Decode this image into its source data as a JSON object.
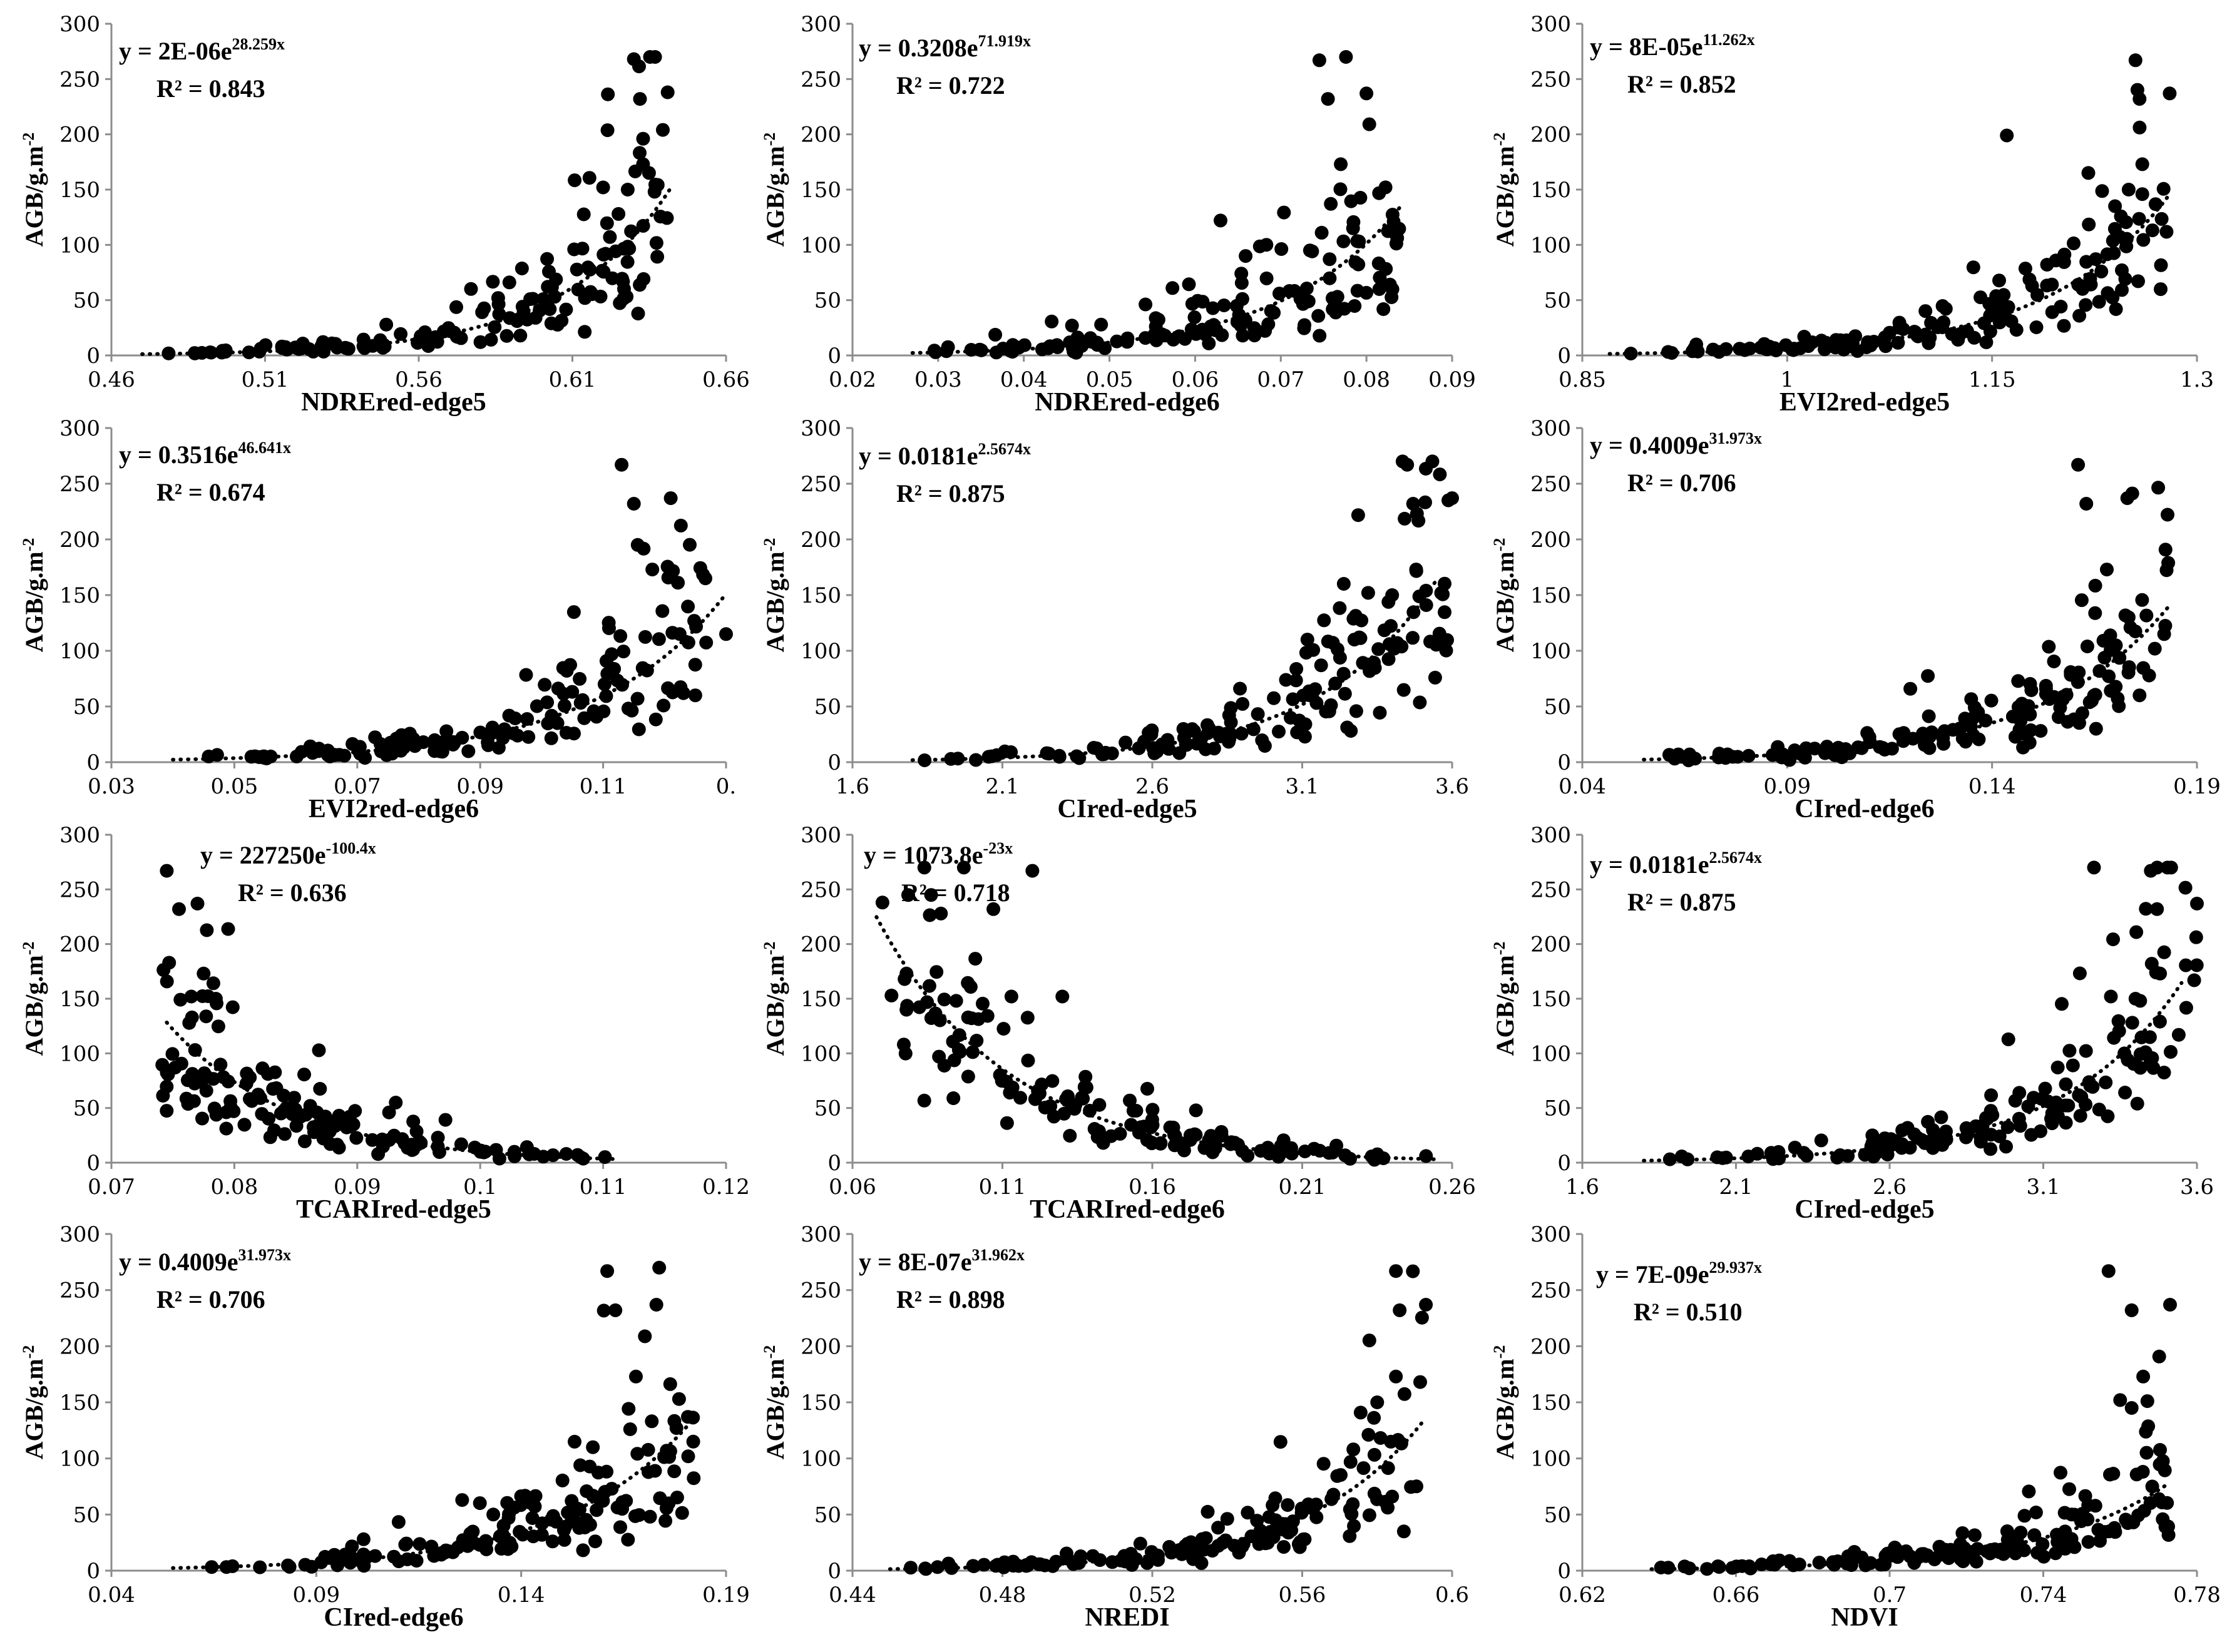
{
  "figure": {
    "ylabel": "AGB/g.m-2",
    "ylabel_main": "AGB/g.m",
    "ylabel_sup": "-2"
  },
  "chart_data": [
    {
      "type": "scatter",
      "xlabel": "NDREred-edge5",
      "ylabel": "AGB/g.m-2",
      "xticks": [
        "0.46",
        "0.51",
        "0.56",
        "0.61",
        "0.66"
      ],
      "xlim": [
        0.46,
        0.66
      ],
      "yticks": [
        "0",
        "50",
        "100",
        "150",
        "200",
        "250",
        "300"
      ],
      "ylim": [
        0,
        300
      ],
      "equation": {
        "prefix": "y = 2E-06e",
        "exponent": "28.259x"
      },
      "r2": "R² = 0.843",
      "fit": {
        "a": 2e-06,
        "b": 28.259,
        "x_from": 0.47,
        "x_to": 0.642
      },
      "points": {
        "x_min": 0.472,
        "x_max": 0.642,
        "n": 150
      },
      "outliers": [
        [
          0.63,
          268
        ],
        [
          0.632,
          232
        ],
        [
          0.641,
          238
        ],
        [
          0.633,
          173
        ],
        [
          0.628,
          150
        ],
        [
          0.625,
          128
        ],
        [
          0.62,
          152
        ]
      ]
    },
    {
      "type": "scatter",
      "xlabel": "NDREred-edge6",
      "ylabel": "AGB/g.m-2",
      "xticks": [
        "0.02",
        "0.03",
        "0.04",
        "0.05",
        "0.06",
        "0.07",
        "0.08",
        "0.09"
      ],
      "xlim": [
        0.02,
        0.09
      ],
      "yticks": [
        "0",
        "50",
        "100",
        "150",
        "200",
        "250",
        "300"
      ],
      "ylim": [
        0,
        300
      ],
      "equation": {
        "prefix": "y = 0.3208e",
        "exponent": "71.919x"
      },
      "r2": "R² = 0.722",
      "fit": {
        "a": 0.3208,
        "b": 71.919,
        "x_from": 0.027,
        "x_to": 0.084
      },
      "points": {
        "x_min": 0.027,
        "x_max": 0.084,
        "n": 150
      },
      "outliers": [
        [
          0.0745,
          267
        ],
        [
          0.0755,
          232
        ],
        [
          0.08,
          237
        ],
        [
          0.077,
          173
        ],
        [
          0.0815,
          60
        ],
        [
          0.0835,
          115
        ]
      ]
    },
    {
      "type": "scatter",
      "xlabel": "EVI2red-edge5",
      "ylabel": "AGB/g.m-2",
      "xticks": [
        "0.85",
        "1",
        "1.15",
        "1.3"
      ],
      "xlim": [
        0.85,
        1.3
      ],
      "yticks": [
        "0",
        "50",
        "100",
        "150",
        "200",
        "250",
        "300"
      ],
      "ylim": [
        0,
        300
      ],
      "equation": {
        "prefix": "y = 8E-05e",
        "exponent": "11.262x"
      },
      "r2": "R² = 0.852",
      "fit": {
        "a": 8e-05,
        "b": 11.262,
        "x_from": 0.87,
        "x_to": 1.28
      },
      "points": {
        "x_min": 0.87,
        "x_max": 1.28,
        "n": 150
      },
      "outliers": [
        [
          1.255,
          267
        ],
        [
          1.258,
          232
        ],
        [
          1.28,
          237
        ],
        [
          1.26,
          173
        ],
        [
          1.25,
          150
        ],
        [
          1.24,
          135
        ]
      ]
    },
    {
      "type": "scatter",
      "xlabel": "EVI2red-edge6",
      "ylabel": "AGB/g.m-2",
      "xticks": [
        "0.03",
        "0.05",
        "0.07",
        "0.09",
        "0.11",
        "0."
      ],
      "xlim": [
        0.03,
        0.13
      ],
      "yticks": [
        "0",
        "50",
        "100",
        "150",
        "200",
        "250",
        "300"
      ],
      "ylim": [
        0,
        300
      ],
      "equation": {
        "prefix": "y = 0.3516e",
        "exponent": "46.641x"
      },
      "r2": "R² = 0.674",
      "fit": {
        "a": 0.3516,
        "b": 46.641,
        "x_from": 0.04,
        "x_to": 0.13
      },
      "points": {
        "x_min": 0.04,
        "x_max": 0.128,
        "n": 150
      },
      "outliers": [
        [
          0.113,
          267
        ],
        [
          0.115,
          232
        ],
        [
          0.121,
          237
        ],
        [
          0.118,
          173
        ],
        [
          0.125,
          60
        ],
        [
          0.13,
          115
        ]
      ]
    },
    {
      "type": "scatter",
      "xlabel": "CIred-edge5",
      "ylabel": "AGB/g.m-2",
      "xticks": [
        "1.6",
        "2.1",
        "2.6",
        "3.1",
        "3.6"
      ],
      "xlim": [
        1.6,
        3.6
      ],
      "yticks": [
        "0",
        "50",
        "100",
        "150",
        "200",
        "250",
        "300"
      ],
      "ylim": [
        0,
        300
      ],
      "equation": {
        "prefix": "y = 0.0181e",
        "exponent": "2.5674x"
      },
      "r2": "R² = 0.875",
      "fit": {
        "a": 0.0181,
        "b": 2.5674,
        "x_from": 1.8,
        "x_to": 3.55
      },
      "points": {
        "x_min": 1.8,
        "x_max": 3.6,
        "n": 150
      },
      "outliers": [
        [
          3.45,
          267
        ],
        [
          3.47,
          232
        ],
        [
          3.6,
          237
        ],
        [
          3.48,
          173
        ],
        [
          3.4,
          150
        ],
        [
          3.32,
          152
        ]
      ]
    },
    {
      "type": "scatter",
      "xlabel": "CIred-edge6",
      "ylabel": "AGB/g.m-2",
      "xticks": [
        "0.04",
        "0.09",
        "0.14",
        "0.19"
      ],
      "xlim": [
        0.04,
        0.19
      ],
      "yticks": [
        "0",
        "50",
        "100",
        "150",
        "200",
        "250",
        "300"
      ],
      "ylim": [
        0,
        300
      ],
      "equation": {
        "prefix": "y = 0.4009e",
        "exponent": "31.973x"
      },
      "r2": "R² = 0.706",
      "fit": {
        "a": 0.4009,
        "b": 31.973,
        "x_from": 0.055,
        "x_to": 0.183
      },
      "points": {
        "x_min": 0.055,
        "x_max": 0.183,
        "n": 150
      },
      "outliers": [
        [
          0.161,
          267
        ],
        [
          0.163,
          232
        ],
        [
          0.173,
          237
        ],
        [
          0.168,
          173
        ],
        [
          0.176,
          60
        ],
        [
          0.182,
          115
        ]
      ]
    },
    {
      "type": "scatter",
      "xlabel": "TCARIred-edge5",
      "ylabel": "AGB/g.m-2",
      "xticks": [
        "0.07",
        "0.08",
        "0.09",
        "0.1",
        "0.11",
        "0.12"
      ],
      "xlim": [
        0.07,
        0.12
      ],
      "yticks": [
        "0",
        "50",
        "100",
        "150",
        "200",
        "250",
        "300"
      ],
      "ylim": [
        0,
        300
      ],
      "equation": {
        "prefix": "y = 227250e",
        "exponent": "-100.4x"
      },
      "r2": "R² = 0.636",
      "fit": {
        "a": 227250,
        "b": -100.4,
        "x_from": 0.0745,
        "x_to": 0.111
      },
      "points": {
        "x_min": 0.074,
        "x_max": 0.111,
        "n": 150
      },
      "outliers": [
        [
          0.0745,
          267
        ],
        [
          0.0755,
          232
        ],
        [
          0.077,
          237
        ],
        [
          0.0775,
          173
        ],
        [
          0.0765,
          152
        ],
        [
          0.0785,
          150
        ]
      ]
    },
    {
      "type": "scatter",
      "xlabel": "TCARIred-edge6",
      "ylabel": "AGB/g.m-2",
      "xticks": [
        "0.06",
        "0.11",
        "0.16",
        "0.21",
        "0.26"
      ],
      "xlim": [
        0.06,
        0.26
      ],
      "yticks": [
        "0",
        "50",
        "100",
        "150",
        "200",
        "250",
        "300"
      ],
      "ylim": [
        0,
        300
      ],
      "equation": {
        "prefix": "y = 1073.8e",
        "exponent": "-23x"
      },
      "r2": "R² = 0.718",
      "fit": {
        "a": 1073.8,
        "b": -23,
        "x_from": 0.068,
        "x_to": 0.255
      },
      "points": {
        "x_min": 0.07,
        "x_max": 0.255,
        "n": 150
      },
      "outliers": [
        [
          0.07,
          238
        ],
        [
          0.107,
          232
        ],
        [
          0.12,
          267
        ],
        [
          0.078,
          173
        ],
        [
          0.113,
          152
        ],
        [
          0.13,
          152
        ]
      ]
    },
    {
      "type": "scatter",
      "xlabel": "CIred-edge5",
      "ylabel": "AGB/g.m-2",
      "xticks": [
        "1.6",
        "2.1",
        "2.6",
        "3.1",
        "3.6"
      ],
      "xlim": [
        1.6,
        3.6
      ],
      "yticks": [
        "0",
        "50",
        "100",
        "150",
        "200",
        "250",
        "300"
      ],
      "ylim": [
        0,
        300
      ],
      "equation": {
        "prefix": "y = 0.0181e",
        "exponent": "2.5674x"
      },
      "r2": "R² = 0.875",
      "fit": {
        "a": 0.0181,
        "b": 2.5674,
        "x_from": 1.8,
        "x_to": 3.55
      },
      "points": {
        "x_min": 1.8,
        "x_max": 3.6,
        "n": 150
      },
      "outliers": [
        [
          3.45,
          267
        ],
        [
          3.47,
          232
        ],
        [
          3.6,
          237
        ],
        [
          3.48,
          173
        ],
        [
          3.4,
          150
        ],
        [
          3.32,
          152
        ]
      ]
    },
    {
      "type": "scatter",
      "xlabel": "CIred-edge6",
      "ylabel": "AGB/g.m-2",
      "xticks": [
        "0.04",
        "0.09",
        "0.14",
        "0.19"
      ],
      "xlim": [
        0.04,
        0.19
      ],
      "yticks": [
        "0",
        "50",
        "100",
        "150",
        "200",
        "250",
        "300"
      ],
      "ylim": [
        0,
        300
      ],
      "equation": {
        "prefix": "y = 0.4009e",
        "exponent": "31.973x"
      },
      "r2": "R² = 0.706",
      "fit": {
        "a": 0.4009,
        "b": 31.973,
        "x_from": 0.055,
        "x_to": 0.183
      },
      "points": {
        "x_min": 0.055,
        "x_max": 0.183,
        "n": 150
      },
      "outliers": [
        [
          0.161,
          267
        ],
        [
          0.163,
          232
        ],
        [
          0.173,
          237
        ],
        [
          0.168,
          173
        ],
        [
          0.176,
          60
        ],
        [
          0.182,
          115
        ]
      ]
    },
    {
      "type": "scatter",
      "xlabel": "NREDI",
      "ylabel": "AGB/g.m-2",
      "xticks": [
        "0.44",
        "0.48",
        "0.52",
        "0.56",
        "0.6"
      ],
      "xlim": [
        0.44,
        0.6
      ],
      "yticks": [
        "0",
        "50",
        "100",
        "150",
        "200",
        "250",
        "300"
      ],
      "ylim": [
        0,
        300
      ],
      "equation": {
        "prefix": "y = 8E-07e",
        "exponent": "31.962x"
      },
      "r2": "R² = 0.898",
      "fit": {
        "a": 8e-07,
        "b": 31.962,
        "x_from": 0.45,
        "x_to": 0.592
      },
      "points": {
        "x_min": 0.452,
        "x_max": 0.592,
        "n": 150
      },
      "outliers": [
        [
          0.585,
          267
        ],
        [
          0.586,
          232
        ],
        [
          0.593,
          237
        ],
        [
          0.585,
          173
        ],
        [
          0.584,
          66
        ],
        [
          0.58,
          150
        ]
      ]
    },
    {
      "type": "scatter",
      "xlabel": "NDVI",
      "ylabel": "AGB/g.m-2",
      "xticks": [
        "0.62",
        "0.66",
        "0.7",
        "0.74",
        "0.78"
      ],
      "xlim": [
        0.62,
        0.78
      ],
      "yticks": [
        "0",
        "50",
        "100",
        "150",
        "200",
        "250",
        "300"
      ],
      "ylim": [
        0,
        300
      ],
      "equation": {
        "prefix": "y = 7E-09e",
        "exponent": "29.937x"
      },
      "r2": "R² = 0.510",
      "fit": {
        "a": 7e-09,
        "b": 29.937,
        "x_from": 0.638,
        "x_to": 0.773
      },
      "points": {
        "x_min": 0.638,
        "x_max": 0.773,
        "n": 150
      },
      "outliers": [
        [
          0.757,
          267
        ],
        [
          0.763,
          232
        ],
        [
          0.773,
          237
        ],
        [
          0.766,
          173
        ],
        [
          0.76,
          152
        ],
        [
          0.763,
          145
        ]
      ]
    }
  ]
}
